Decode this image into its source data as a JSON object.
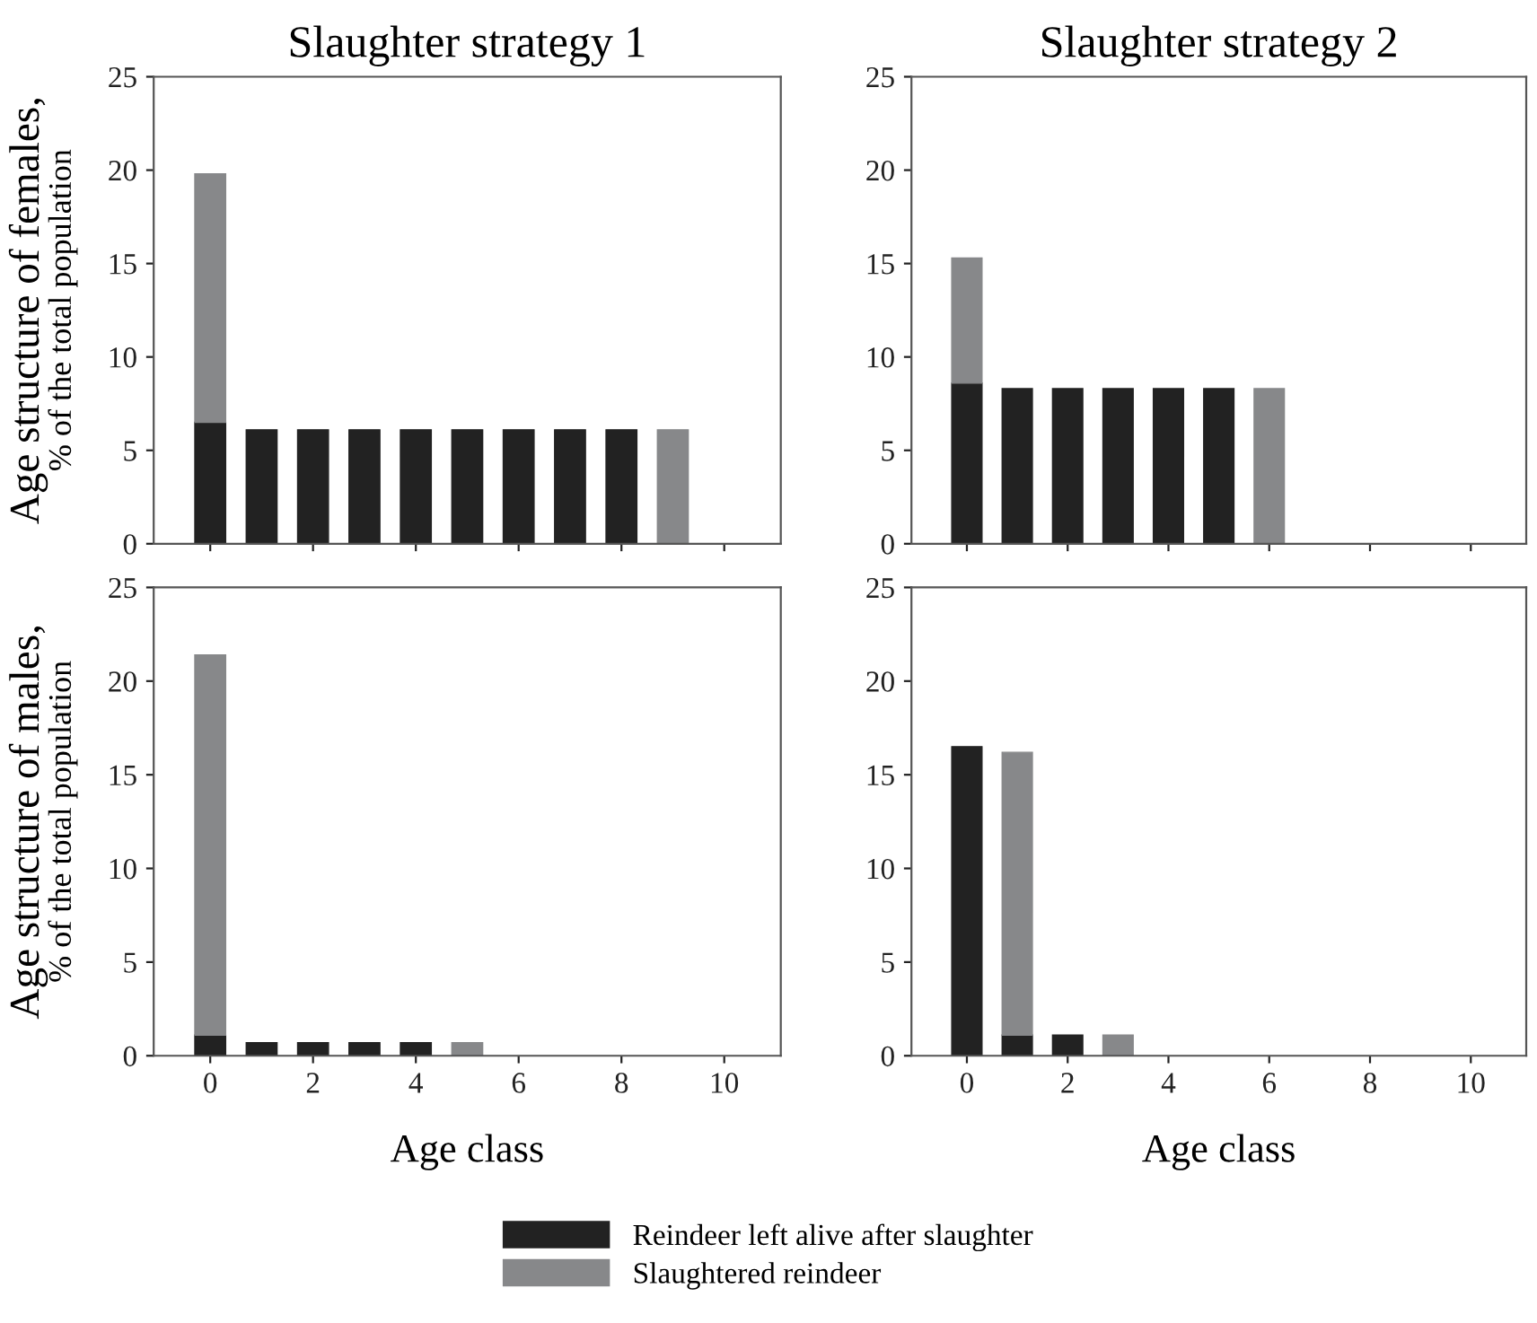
{
  "chart_data": [
    {
      "type": "bar",
      "stacked": true,
      "title": "Slaughter strategy 1",
      "ylabel": "Age structure of females,\n% of the total population",
      "x": [
        0,
        1,
        2,
        3,
        4,
        5,
        6,
        7,
        8,
        9
      ],
      "xlim": [
        -1.1,
        11.1
      ],
      "xticks": [
        {
          "value": 0,
          "label": null
        },
        {
          "value": 2,
          "label": null
        },
        {
          "value": 4,
          "label": null
        },
        {
          "value": 6,
          "label": null
        },
        {
          "value": 8,
          "label": null
        },
        {
          "value": 10,
          "label": null
        }
      ],
      "ylim": [
        0,
        25
      ],
      "yticks": [
        0,
        5,
        10,
        15,
        20,
        25
      ],
      "tick_labels": "y",
      "legend": "bottom",
      "series": [
        {
          "name": "Reindeer left alive after slaughter",
          "color": "#222222",
          "values": [
            6.5,
            6.1,
            6.1,
            6.1,
            6.1,
            6.1,
            6.1,
            6.1,
            6.1,
            null
          ]
        },
        {
          "name": "Slaughtered reindeer",
          "color": "#87888a",
          "values": [
            13.3,
            null,
            null,
            null,
            null,
            null,
            null,
            null,
            null,
            6.1
          ]
        }
      ]
    },
    {
      "type": "bar",
      "stacked": true,
      "title": "Slaughter strategy 2",
      "x": [
        0,
        1,
        2,
        3,
        4,
        5,
        6
      ],
      "xlim": [
        -1.1,
        11.1
      ],
      "xticks": [
        {
          "value": 0,
          "label": null
        },
        {
          "value": 2,
          "label": null
        },
        {
          "value": 4,
          "label": null
        },
        {
          "value": 6,
          "label": null
        },
        {
          "value": 8,
          "label": null
        },
        {
          "value": 10,
          "label": null
        }
      ],
      "ylim": [
        0,
        25
      ],
      "yticks": [
        0,
        5,
        10,
        15,
        20,
        25
      ],
      "tick_labels": "y",
      "series": [
        {
          "color": "#222222",
          "values": [
            8.6,
            8.3,
            8.3,
            8.3,
            8.3,
            8.3,
            null
          ]
        },
        {
          "color": "#87888a",
          "values": [
            6.7,
            null,
            null,
            null,
            null,
            null,
            8.3
          ]
        }
      ]
    },
    {
      "type": "bar",
      "stacked": true,
      "xlabel": "Age class",
      "ylabel": "Age structure of males,\n% of the total population",
      "x": [
        0,
        1,
        2,
        3,
        4,
        5
      ],
      "xlim": [
        -1.1,
        11.1
      ],
      "xticks": [
        0,
        2,
        4,
        6,
        8,
        10
      ],
      "ylim": [
        0,
        25
      ],
      "yticks": [
        0,
        5,
        10,
        15,
        20,
        25
      ],
      "series": [
        {
          "color": "#222222",
          "values": [
            1.1,
            0.7,
            0.7,
            0.7,
            0.7,
            null
          ]
        },
        {
          "color": "#87888a",
          "values": [
            20.3,
            null,
            null,
            null,
            null,
            0.7
          ]
        }
      ]
    },
    {
      "type": "bar",
      "stacked": true,
      "xlabel": "Age class",
      "x": [
        0,
        1,
        2,
        3
      ],
      "xlim": [
        -1.1,
        11.1
      ],
      "xticks": [
        0,
        2,
        4,
        6,
        8,
        10
      ],
      "ylim": [
        0,
        25
      ],
      "yticks": [
        0,
        5,
        10,
        15,
        20,
        25
      ],
      "series": [
        {
          "color": "#222222",
          "values": [
            16.5,
            1.1,
            1.1,
            null
          ]
        },
        {
          "color": "#87888a",
          "values": [
            null,
            15.1,
            null,
            1.1
          ]
        }
      ]
    }
  ]
}
